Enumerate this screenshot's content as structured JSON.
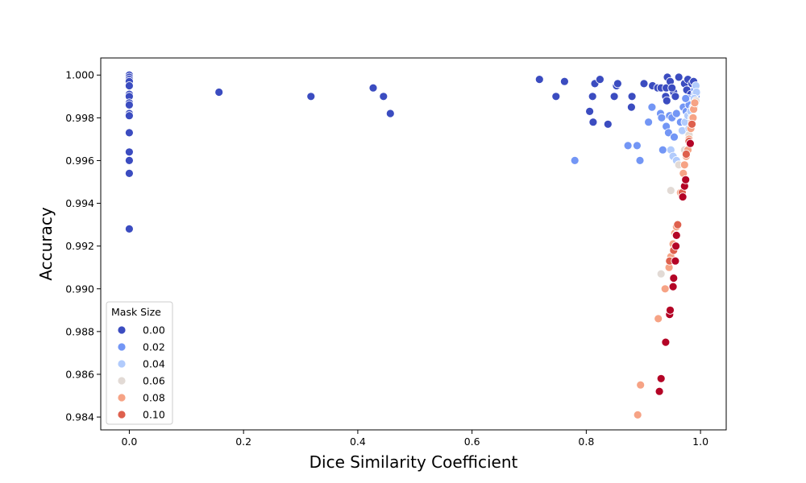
{
  "chart_data": {
    "type": "scatter",
    "title": "",
    "xlabel": "Dice Similarity Coefficient",
    "ylabel": "Accuracy",
    "xlim": [
      -0.05,
      1.045
    ],
    "ylim": [
      0.9834,
      1.0008
    ],
    "xticks": [
      "0.0",
      "0.2",
      "0.4",
      "0.6",
      "0.8",
      "1.0"
    ],
    "xtick_values": [
      0.0,
      0.2,
      0.4,
      0.6,
      0.8,
      1.0
    ],
    "yticks": [
      "0.984",
      "0.986",
      "0.988",
      "0.990",
      "0.992",
      "0.994",
      "0.996",
      "0.998",
      "1.000"
    ],
    "ytick_values": [
      0.984,
      0.986,
      0.988,
      0.99,
      0.992,
      0.994,
      0.996,
      0.998,
      1.0
    ],
    "grid": false,
    "legend": {
      "title": "Mask Size",
      "position": "bottom-left",
      "entries": [
        {
          "label": "0.00",
          "color": "#3b4cc0"
        },
        {
          "label": "0.02",
          "color": "#7396f5"
        },
        {
          "label": "0.04",
          "color": "#b1cbfc"
        },
        {
          "label": "0.06",
          "color": "#e2dad5"
        },
        {
          "label": "0.08",
          "color": "#f6a385"
        },
        {
          "label": "0.10",
          "color": "#de604d"
        }
      ]
    },
    "hue_colors": {
      "0.00": "#3b4cc0",
      "0.02": "#7396f5",
      "0.04": "#b1cbfc",
      "0.06": "#e2dad5",
      "0.08": "#f6a385",
      "0.10": "#de604d",
      "0.12": "#b40426"
    },
    "series": [
      {
        "hue": "0.00",
        "points": [
          [
            0,
            1.0
          ],
          [
            0,
            0.9999
          ],
          [
            0,
            0.9998
          ],
          [
            0,
            0.9997
          ],
          [
            0,
            0.9995
          ],
          [
            0,
            0.9991
          ],
          [
            0,
            0.999
          ],
          [
            0,
            0.9987
          ],
          [
            0,
            0.9986
          ],
          [
            0,
            0.9982
          ],
          [
            0,
            0.9981
          ],
          [
            0,
            0.9973
          ],
          [
            0,
            0.9964
          ],
          [
            0,
            0.996
          ],
          [
            0,
            0.9954
          ],
          [
            0,
            0.9928
          ],
          [
            0.157,
            0.9992
          ],
          [
            0.318,
            0.999
          ],
          [
            0.427,
            0.9994
          ],
          [
            0.445,
            0.999
          ],
          [
            0.457,
            0.9982
          ],
          [
            0.718,
            0.9998
          ],
          [
            0.747,
            0.999
          ],
          [
            0.762,
            0.9997
          ],
          [
            0.811,
            0.999
          ],
          [
            0.815,
            0.9996
          ],
          [
            0.824,
            0.9998
          ],
          [
            0.849,
            0.999
          ],
          [
            0.853,
            0.9995
          ],
          [
            0.855,
            0.9996
          ],
          [
            0.88,
            0.999
          ],
          [
            0.901,
            0.9996
          ],
          [
            0.916,
            0.9995
          ],
          [
            0.925,
            0.9994
          ],
          [
            0.931,
            0.9994
          ],
          [
            0.94,
            0.9994
          ],
          [
            0.942,
            0.9999
          ],
          [
            0.947,
            0.9997
          ],
          [
            0.953,
            0.9992
          ],
          [
            0.956,
            0.999
          ],
          [
            0.962,
            0.9999
          ],
          [
            0.972,
            0.9996
          ],
          [
            0.978,
            0.9998
          ],
          [
            0.985,
            0.9996
          ],
          [
            0.988,
            0.9997
          ],
          [
            0.939,
            0.999
          ],
          [
            0.941,
            0.9988
          ],
          [
            0.95,
            0.9994
          ],
          [
            0.976,
            0.9993
          ],
          [
            0.983,
            0.9991
          ],
          [
            0.806,
            0.9983
          ],
          [
            0.838,
            0.9977
          ],
          [
            0.879,
            0.9985
          ],
          [
            0.812,
            0.9978
          ]
        ]
      },
      {
        "hue": "0.02",
        "points": [
          [
            0.78,
            0.996
          ],
          [
            0.873,
            0.9967
          ],
          [
            0.889,
            0.9967
          ],
          [
            0.894,
            0.996
          ],
          [
            0.909,
            0.9978
          ],
          [
            0.915,
            0.9985
          ],
          [
            0.93,
            0.9982
          ],
          [
            0.932,
            0.998
          ],
          [
            0.934,
            0.9965
          ],
          [
            0.94,
            0.9976
          ],
          [
            0.944,
            0.9973
          ],
          [
            0.946,
            0.9981
          ],
          [
            0.95,
            0.998
          ],
          [
            0.954,
            0.9971
          ],
          [
            0.958,
            0.9982
          ],
          [
            0.965,
            0.9978
          ],
          [
            0.97,
            0.9985
          ],
          [
            0.975,
            0.9983
          ],
          [
            0.978,
            0.9989
          ],
          [
            0.984,
            0.9987
          ],
          [
            0.989,
            0.9988
          ],
          [
            0.99,
            0.9993
          ],
          [
            0.992,
            0.999
          ],
          [
            0.98,
            0.9986
          ],
          [
            0.974,
            0.9989
          ]
        ]
      },
      {
        "hue": "0.04",
        "points": [
          [
            0.948,
            0.9965
          ],
          [
            0.952,
            0.9962
          ],
          [
            0.958,
            0.996
          ],
          [
            0.962,
            0.9958
          ],
          [
            0.968,
            0.9974
          ],
          [
            0.973,
            0.9978
          ],
          [
            0.978,
            0.9981
          ],
          [
            0.983,
            0.9983
          ],
          [
            0.987,
            0.9985
          ],
          [
            0.99,
            0.9991
          ],
          [
            0.992,
            0.9995
          ],
          [
            0.993,
            0.9992
          ],
          [
            0.989,
            0.9989
          ],
          [
            0.985,
            0.998
          ],
          [
            0.98,
            0.9975
          ]
        ]
      },
      {
        "hue": "0.06",
        "points": [
          [
            0.948,
            0.9946
          ],
          [
            0.962,
            0.9958
          ],
          [
            0.972,
            0.9965
          ],
          [
            0.98,
            0.9972
          ],
          [
            0.985,
            0.998
          ],
          [
            0.989,
            0.9985
          ],
          [
            0.992,
            0.9988
          ],
          [
            0.931,
            0.9907
          ]
        ]
      },
      {
        "hue": "0.08",
        "points": [
          [
            0.89,
            0.9841
          ],
          [
            0.895,
            0.9855
          ],
          [
            0.926,
            0.9886
          ],
          [
            0.938,
            0.99
          ],
          [
            0.945,
            0.991
          ],
          [
            0.948,
            0.9915
          ],
          [
            0.952,
            0.9921
          ],
          [
            0.955,
            0.9926
          ],
          [
            0.958,
            0.9929
          ],
          [
            0.965,
            0.9945
          ],
          [
            0.97,
            0.9954
          ],
          [
            0.972,
            0.9958
          ],
          [
            0.975,
            0.9962
          ],
          [
            0.978,
            0.9965
          ],
          [
            0.98,
            0.997
          ],
          [
            0.983,
            0.9975
          ],
          [
            0.985,
            0.9978
          ],
          [
            0.987,
            0.998
          ],
          [
            0.988,
            0.9984
          ],
          [
            0.99,
            0.9987
          ]
        ]
      },
      {
        "hue": "0.10",
        "points": [
          [
            0.946,
            0.9913
          ],
          [
            0.953,
            0.9918
          ],
          [
            0.957,
            0.9925
          ],
          [
            0.96,
            0.993
          ],
          [
            0.968,
            0.9945
          ],
          [
            0.975,
            0.9963
          ],
          [
            0.98,
            0.9969
          ],
          [
            0.985,
            0.9977
          ]
        ]
      },
      {
        "hue": "0.12",
        "points": [
          [
            0.928,
            0.9852
          ],
          [
            0.931,
            0.9858
          ],
          [
            0.939,
            0.9875
          ],
          [
            0.946,
            0.9888
          ],
          [
            0.947,
            0.989
          ],
          [
            0.952,
            0.9901
          ],
          [
            0.953,
            0.9905
          ],
          [
            0.956,
            0.9913
          ],
          [
            0.957,
            0.992
          ],
          [
            0.958,
            0.9925
          ],
          [
            0.969,
            0.9943
          ],
          [
            0.972,
            0.9948
          ],
          [
            0.974,
            0.9951
          ],
          [
            0.982,
            0.9968
          ]
        ]
      }
    ]
  }
}
